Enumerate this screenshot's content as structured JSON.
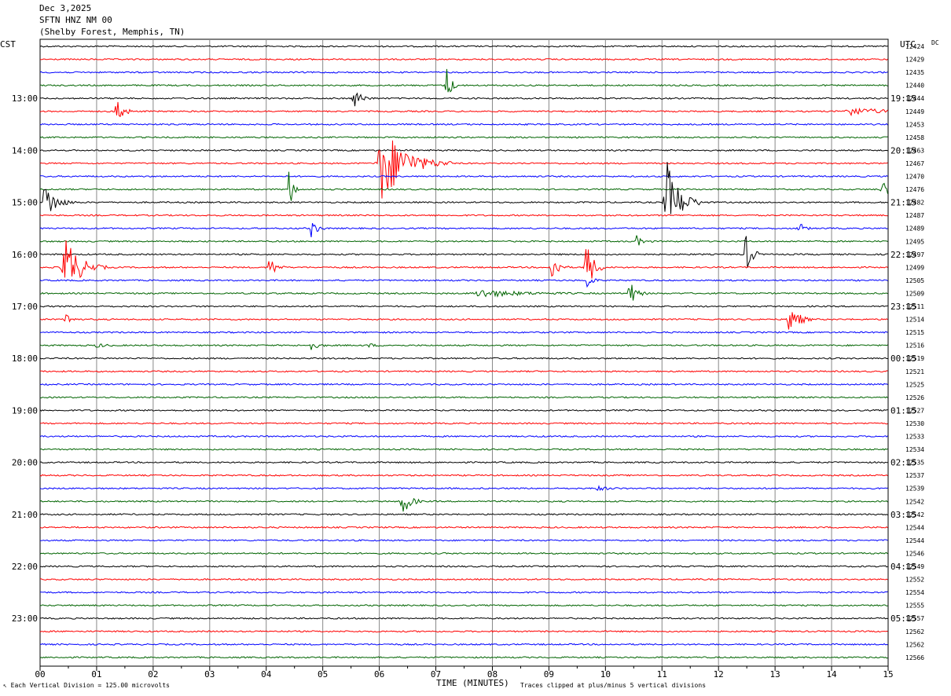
{
  "header": {
    "date": "Dec 3,2025",
    "station": "SFTN HNZ NM 00",
    "location": "(Shelby Forest, Memphis, TN)"
  },
  "left_zone": "CST",
  "right_zone": "UTC",
  "dc_label": "DC",
  "footer": {
    "scale": "Each Vertical Division =  125.00 microvolts",
    "xlabel": "TIME (MINUTES)",
    "clip_note": "Traces clipped at plus/minus 5 vertical divisions"
  },
  "chart_data": {
    "type": "line",
    "title": "SFTN HNZ NM 00",
    "xlabel": "TIME (MINUTES)",
    "xlim": [
      0,
      15
    ],
    "x_ticks": [
      "00",
      "01",
      "02",
      "03",
      "04",
      "05",
      "06",
      "07",
      "08",
      "09",
      "10",
      "11",
      "12",
      "13",
      "14",
      "15"
    ],
    "trace_colors": [
      "#000000",
      "#ff0000",
      "#0000ff",
      "#006400"
    ],
    "left_hour_labels": [
      {
        "trace": 4,
        "label": "13:00"
      },
      {
        "trace": 8,
        "label": "14:00"
      },
      {
        "trace": 12,
        "label": "15:00"
      },
      {
        "trace": 16,
        "label": "16:00"
      },
      {
        "trace": 20,
        "label": "17:00"
      },
      {
        "trace": 24,
        "label": "18:00"
      },
      {
        "trace": 28,
        "label": "19:00"
      },
      {
        "trace": 32,
        "label": "20:00"
      },
      {
        "trace": 36,
        "label": "21:00"
      },
      {
        "trace": 40,
        "label": "22:00"
      },
      {
        "trace": 44,
        "label": "23:00"
      }
    ],
    "right_hour_labels": [
      {
        "trace": 4,
        "label": "19:15"
      },
      {
        "trace": 8,
        "label": "20:15"
      },
      {
        "trace": 12,
        "label": "21:15"
      },
      {
        "trace": 16,
        "label": "22:15"
      },
      {
        "trace": 20,
        "label": "23:15"
      },
      {
        "trace": 24,
        "label": "00:15"
      },
      {
        "trace": 28,
        "label": "01:15"
      },
      {
        "trace": 32,
        "label": "02:15"
      },
      {
        "trace": 36,
        "label": "03:15"
      },
      {
        "trace": 40,
        "label": "04:15"
      },
      {
        "trace": 44,
        "label": "05:15"
      }
    ],
    "dc_values": [
      "12424",
      "12429",
      "12435",
      "12440",
      "12444",
      "12449",
      "12453",
      "12458",
      "12463",
      "12467",
      "12470",
      "12476",
      "12482",
      "12487",
      "12489",
      "12495",
      "12497",
      "12499",
      "12505",
      "12509",
      "12511",
      "12514",
      "12515",
      "12516",
      "12519",
      "12521",
      "12525",
      "12526",
      "12527",
      "12530",
      "12533",
      "12534",
      "12535",
      "12537",
      "12539",
      "12542",
      "12542",
      "12544",
      "12544",
      "12546",
      "12549",
      "12552",
      "12554",
      "12555",
      "12557",
      "12562",
      "12562",
      "12566"
    ],
    "events": [
      {
        "trace": 4,
        "minute": 5.55,
        "amp": 14,
        "dur": 0.15
      },
      {
        "trace": 3,
        "minute": 7.18,
        "amp": 30,
        "dur": 0.1
      },
      {
        "trace": 5,
        "minute": 1.35,
        "amp": 28,
        "dur": 0.12
      },
      {
        "trace": 5,
        "minute": 14.3,
        "amp": 5,
        "dur": 0.7
      },
      {
        "trace": 9,
        "minute": 6.05,
        "amp": 52,
        "dur": 0.5
      },
      {
        "trace": 11,
        "minute": 4.4,
        "amp": 26,
        "dur": 0.1
      },
      {
        "trace": 11,
        "minute": 14.9,
        "amp": 10,
        "dur": 0.2
      },
      {
        "trace": 12,
        "minute": 0.08,
        "amp": 28,
        "dur": 0.22
      },
      {
        "trace": 12,
        "minute": 11.08,
        "amp": 55,
        "dur": 0.28
      },
      {
        "trace": 14,
        "minute": 4.8,
        "amp": 12,
        "dur": 0.12
      },
      {
        "trace": 14,
        "minute": 13.4,
        "amp": 12,
        "dur": 0.1
      },
      {
        "trace": 15,
        "minute": 10.55,
        "amp": 7,
        "dur": 0.12
      },
      {
        "trace": 16,
        "minute": 12.48,
        "amp": 30,
        "dur": 0.12
      },
      {
        "trace": 17,
        "minute": 0.43,
        "amp": 45,
        "dur": 0.3
      },
      {
        "trace": 17,
        "minute": 4.05,
        "amp": 18,
        "dur": 0.12
      },
      {
        "trace": 17,
        "minute": 9.05,
        "amp": 25,
        "dur": 0.12
      },
      {
        "trace": 17,
        "minute": 9.65,
        "amp": 40,
        "dur": 0.15
      },
      {
        "trace": 18,
        "minute": 9.67,
        "amp": 12,
        "dur": 0.1
      },
      {
        "trace": 19,
        "minute": 10.4,
        "amp": 22,
        "dur": 0.14
      },
      {
        "trace": 19,
        "minute": 7.8,
        "amp": 5,
        "dur": 0.8
      },
      {
        "trace": 21,
        "minute": 0.45,
        "amp": 10,
        "dur": 0.12
      },
      {
        "trace": 21,
        "minute": 13.25,
        "amp": 25,
        "dur": 0.18
      },
      {
        "trace": 23,
        "minute": 4.8,
        "amp": 7,
        "dur": 0.12
      },
      {
        "trace": 23,
        "minute": 1.0,
        "amp": 3,
        "dur": 0.15
      },
      {
        "trace": 23,
        "minute": 5.8,
        "amp": 3,
        "dur": 0.12
      },
      {
        "trace": 34,
        "minute": 9.85,
        "amp": 3,
        "dur": 0.2
      },
      {
        "trace": 35,
        "minute": 6.4,
        "amp": 24,
        "dur": 0.15
      }
    ]
  }
}
